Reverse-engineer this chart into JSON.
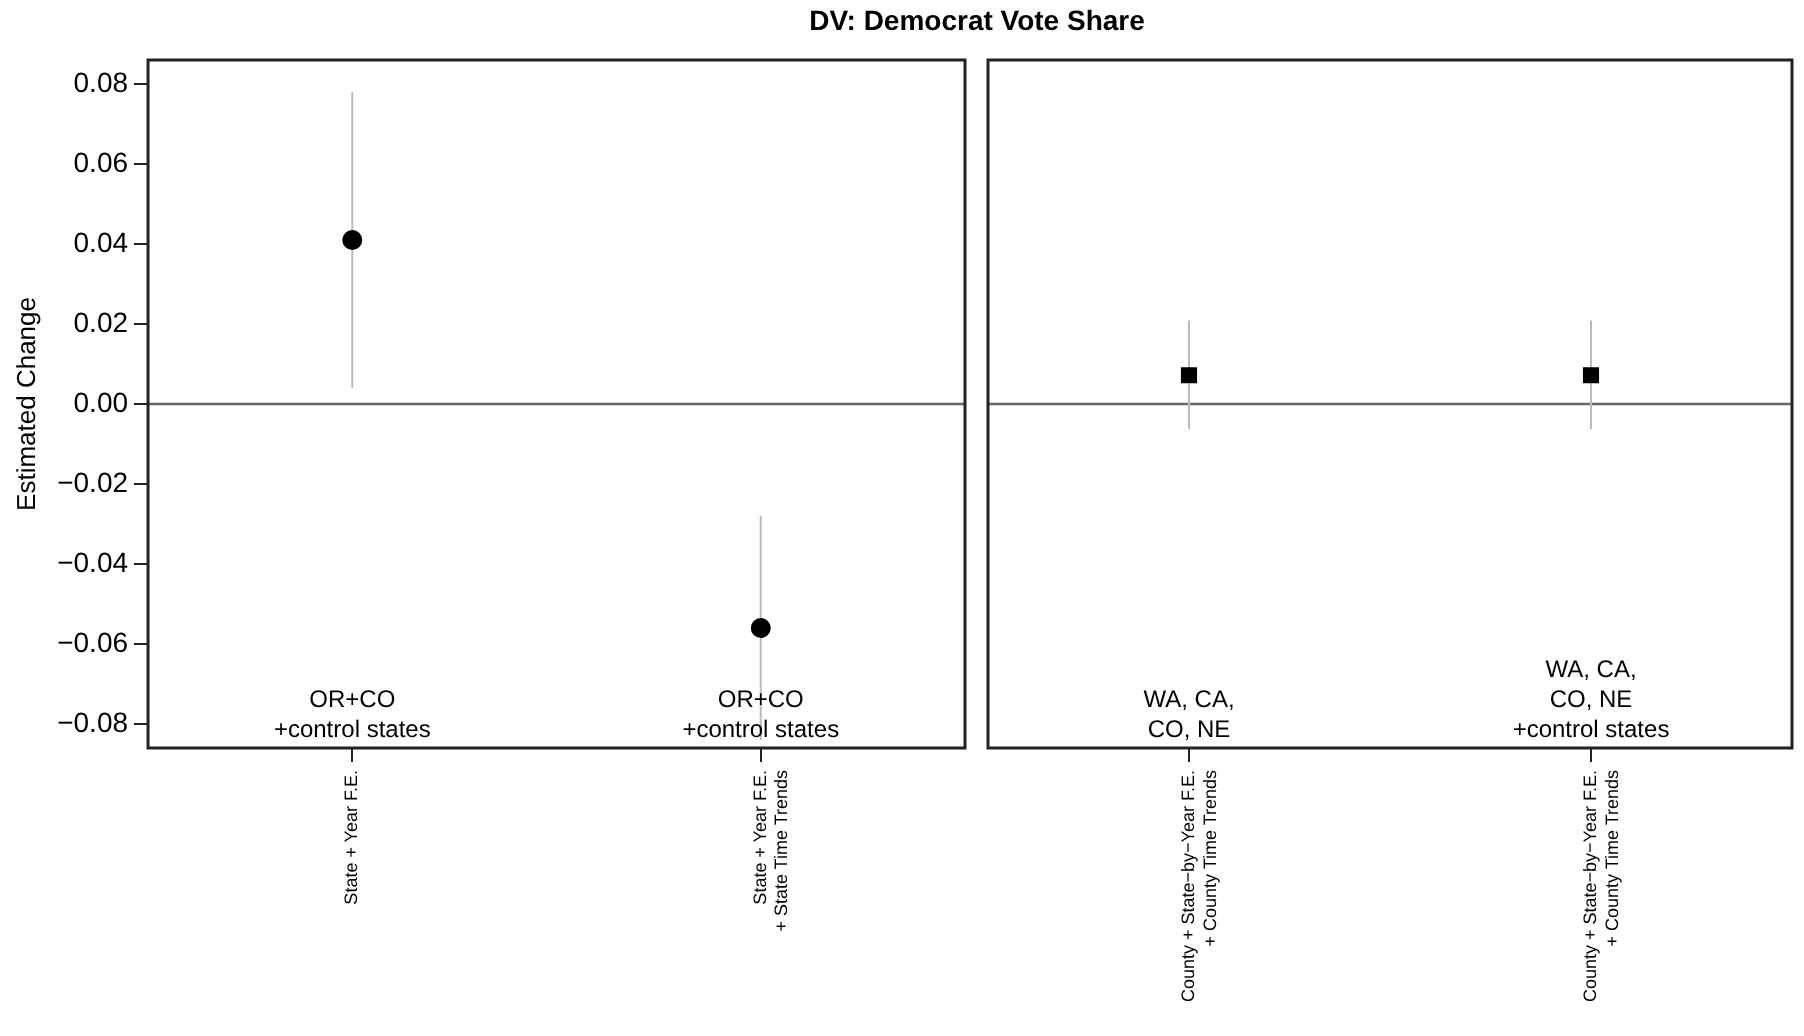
{
  "chart_data": [
    {
      "type": "scatter",
      "title": "DV: Democrat Vote Share",
      "ylabel": "Estimated Change",
      "categories": [
        "State + Year F.E.",
        "State + Year F.E.\n+ State Time Trends"
      ],
      "values": [
        0.041,
        -0.056
      ],
      "errors": [
        [
          0.004,
          0.078
        ],
        [
          -0.084,
          -0.028
        ]
      ],
      "color": "#000000",
      "marker": "circle",
      "ylim": [
        -0.086,
        0.086
      ],
      "yticks": [
        {
          "value": -0.08,
          "label": "−0.08"
        },
        {
          "value": -0.06,
          "label": "−0.06"
        },
        {
          "value": -0.04,
          "label": "−0.04"
        },
        {
          "value": -0.02,
          "label": "−0.02"
        },
        {
          "value": 0,
          "label": "0.00"
        },
        0.02,
        0.04,
        0.06,
        0.08
      ],
      "ref_lines": [
        {
          "axis": "y",
          "value": 0,
          "color": "#666666"
        }
      ],
      "annotations": [
        "OR+CO\n+control states",
        "OR+CO\n+control states"
      ],
      "grid": false,
      "legend": false
    },
    {
      "type": "scatter",
      "categories": [
        "County + State−by−Year F.E.\n+ County Time Trends",
        "County + State−by−Year F.E.\n+ County Time Trends"
      ],
      "values": [
        0.0072,
        0.0072
      ],
      "errors": [
        [
          -0.0063,
          0.0209
        ],
        [
          -0.0063,
          0.0209
        ]
      ],
      "color": "#000000",
      "marker": "square",
      "ylim": [
        -0.086,
        0.086
      ],
      "tick_labels": "x",
      "ref_lines": [
        {
          "axis": "y",
          "value": 0,
          "color": "#666666"
        }
      ],
      "annotations": [
        "WA, CA,\nCO, NE",
        "WA, CA,\nCO, NE\n+control states"
      ],
      "grid": false,
      "legend": false
    }
  ]
}
